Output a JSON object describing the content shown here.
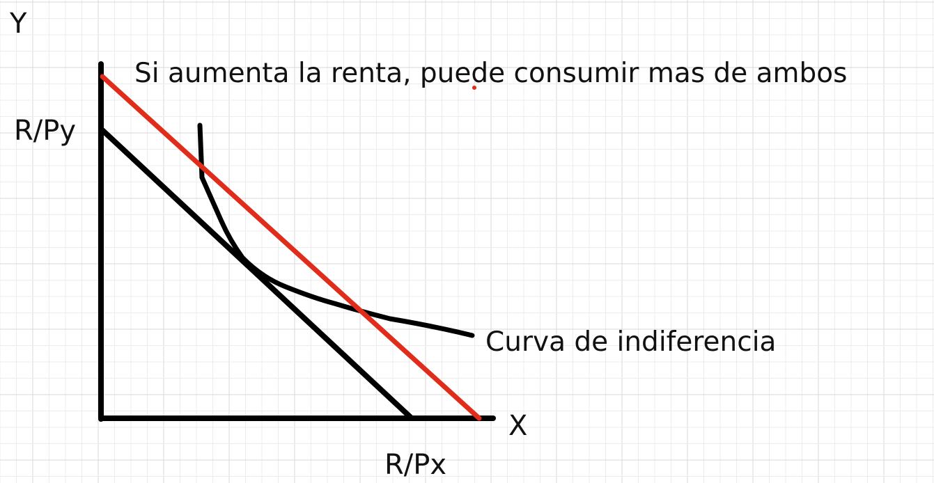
{
  "labels": {
    "y_axis": "Y",
    "x_axis": "X",
    "y_intercept": "R/Py",
    "x_intercept": "R/Px",
    "annotation": "Si aumenta la renta, puede consumir mas de ambos",
    "curve": "Curva de indiferencia"
  },
  "colors": {
    "ink": "#000000",
    "new_budget_line": "#e02d1b",
    "grid_minor": "#ececec",
    "grid_major": "#d8d8d8"
  }
}
